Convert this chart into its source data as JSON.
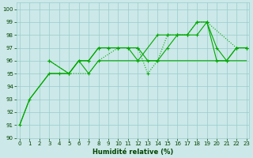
{
  "xlabel": "Humidité relative (%)",
  "background_color": "#cce8e8",
  "grid_color": "#99cccc",
  "line_color": "#00aa00",
  "xlim": [
    -0.3,
    23.3
  ],
  "ylim": [
    90,
    100.5
  ],
  "yticks": [
    90,
    91,
    92,
    93,
    94,
    95,
    96,
    97,
    98,
    99,
    100
  ],
  "xticks": [
    0,
    1,
    2,
    3,
    4,
    5,
    6,
    7,
    8,
    9,
    10,
    11,
    12,
    13,
    14,
    15,
    16,
    17,
    18,
    19,
    20,
    21,
    22,
    23
  ],
  "series1_x": [
    0,
    1,
    3,
    4,
    5,
    6,
    7,
    8,
    9,
    10,
    11,
    12,
    13,
    14,
    15,
    16,
    17,
    18,
    19,
    20,
    21,
    22,
    23
  ],
  "series1_y": [
    91,
    93,
    95,
    95,
    95,
    96,
    95,
    96,
    96,
    96,
    96,
    96,
    96,
    96,
    96,
    96,
    96,
    96,
    96,
    96,
    96,
    96,
    96
  ],
  "series2_x": [
    0,
    1,
    3,
    4,
    5,
    6,
    7,
    8,
    9,
    10,
    11,
    12,
    13,
    14,
    15,
    16,
    17,
    18,
    19,
    20,
    21,
    22,
    23
  ],
  "series2_y": [
    91,
    93,
    95,
    95,
    95,
    96,
    96,
    97,
    97,
    97,
    97,
    97,
    96,
    96,
    97,
    98,
    98,
    98,
    99,
    97,
    96,
    97,
    97
  ],
  "series3_x": [
    3,
    5,
    7,
    8,
    10,
    12,
    13,
    14,
    15,
    16,
    17,
    18,
    19,
    22,
    23
  ],
  "series3_y": [
    96,
    95,
    95,
    96,
    97,
    97,
    95,
    96,
    98,
    98,
    98,
    99,
    99,
    97,
    97
  ],
  "series4_x": [
    3,
    5,
    6,
    7,
    8,
    9,
    10,
    11,
    12,
    14,
    15,
    16,
    17,
    18,
    19,
    20,
    21,
    22,
    23
  ],
  "series4_y": [
    96,
    95,
    96,
    96,
    97,
    97,
    97,
    97,
    96,
    98,
    98,
    98,
    98,
    99,
    99,
    96,
    96,
    97,
    97
  ]
}
